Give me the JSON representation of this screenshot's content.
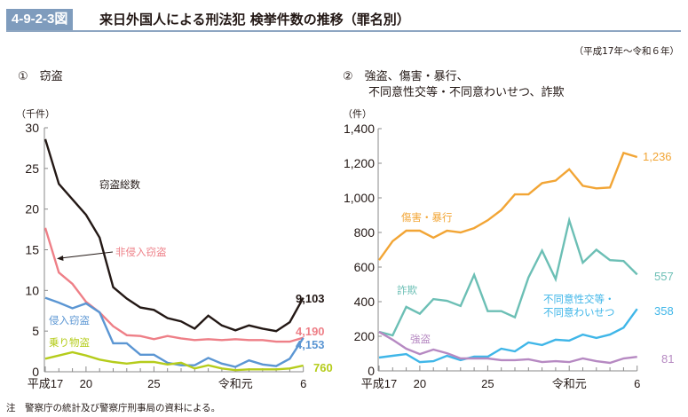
{
  "figure": {
    "number": "4-9-2-3図",
    "title": "来日外国人による刑法犯 検挙件数の推移（罪名別）",
    "period": "（平成17年～令和６年）",
    "note": "注　警察庁の統計及び警察庁刑事局の資料による。"
  },
  "colors": {
    "header_badge": "#7f9cbd",
    "theft_total": "#231815",
    "non_burglary": "#ee7f87",
    "burglary": "#5b96d3",
    "vehicle": "#b5cc1b",
    "assault": "#f2a535",
    "fraud": "#6cbfb5",
    "sexual": "#3fb6e8",
    "robbery": "#b689c2"
  },
  "chart_data": [
    {
      "type": "line",
      "panel_label": "①　窃盗",
      "ylabel": "（千件）",
      "ylim": [
        0,
        30
      ],
      "yticks": [
        "0",
        "5",
        "10",
        "15",
        "20",
        "25",
        "30"
      ],
      "ytick_values": [
        0,
        5,
        10,
        15,
        20,
        25,
        30
      ],
      "x": [
        "平成17",
        "18",
        "19",
        "20",
        "21",
        "22",
        "23",
        "24",
        "25",
        "26",
        "27",
        "28",
        "29",
        "30",
        "令和元",
        "2",
        "3",
        "4",
        "5",
        "6"
      ],
      "xtick_labels": [
        {
          "index": 0,
          "label": "平成17"
        },
        {
          "index": 3,
          "label": "20"
        },
        {
          "index": 8,
          "label": "25"
        },
        {
          "index": 14,
          "label": "令和元"
        },
        {
          "index": 19,
          "label": "6"
        }
      ],
      "grid": false,
      "series": [
        {
          "name": "窃盗総数",
          "key": "theft_total",
          "end_label": "9,103",
          "values": [
            28.6,
            23.1,
            21.2,
            19.3,
            16.5,
            10.4,
            9.0,
            7.9,
            7.6,
            6.6,
            6.2,
            5.3,
            6.9,
            5.7,
            5.1,
            5.7,
            5.3,
            5.0,
            6.1,
            9.103
          ]
        },
        {
          "name": "非侵入窃盗",
          "key": "non_burglary",
          "end_label": "4,190",
          "values": [
            17.7,
            12.2,
            10.8,
            8.6,
            7.3,
            5.6,
            4.5,
            4.4,
            4.0,
            4.4,
            4.1,
            3.9,
            4.0,
            3.9,
            4.0,
            3.9,
            3.9,
            3.7,
            3.7,
            4.19
          ]
        },
        {
          "name": "侵入窃盗",
          "key": "burglary",
          "end_label": "4,153",
          "values": [
            9.1,
            8.5,
            7.8,
            8.4,
            7.3,
            3.5,
            3.5,
            2.1,
            2.1,
            1.1,
            0.8,
            0.8,
            1.7,
            1.0,
            0.6,
            1.4,
            0.9,
            0.7,
            1.6,
            4.153
          ]
        },
        {
          "name": "乗り物盗",
          "key": "vehicle",
          "end_label": "760",
          "values": [
            1.6,
            2.0,
            2.4,
            2.0,
            1.5,
            1.2,
            1.0,
            1.2,
            1.2,
            0.9,
            1.1,
            0.4,
            0.8,
            0.4,
            0.2,
            0.3,
            0.3,
            0.3,
            0.4,
            0.76
          ]
        }
      ]
    },
    {
      "type": "line",
      "panel_label_line1": "②　強盗、傷害・暴行、",
      "panel_label_line2": "不同意性交等・不同意わいせつ、詐欺",
      "ylabel": "（件）",
      "ylim": [
        0,
        1400
      ],
      "yticks": [
        "0",
        "200",
        "400",
        "600",
        "800",
        "1,000",
        "1,200",
        "1,400"
      ],
      "ytick_values": [
        0,
        200,
        400,
        600,
        800,
        1000,
        1200,
        1400
      ],
      "x": [
        "平成17",
        "18",
        "19",
        "20",
        "21",
        "22",
        "23",
        "24",
        "25",
        "26",
        "27",
        "28",
        "29",
        "30",
        "令和元",
        "2",
        "3",
        "4",
        "5",
        "6"
      ],
      "xtick_labels": [
        {
          "index": 0,
          "label": "平成17"
        },
        {
          "index": 3,
          "label": "20"
        },
        {
          "index": 8,
          "label": "25"
        },
        {
          "index": 14,
          "label": "令和元"
        },
        {
          "index": 19,
          "label": "6"
        }
      ],
      "grid": false,
      "series": [
        {
          "name": "傷害・暴行",
          "key": "assault",
          "end_label": "1,236",
          "values": [
            640,
            750,
            810,
            810,
            770,
            810,
            800,
            825,
            870,
            930,
            1020,
            1020,
            1085,
            1100,
            1165,
            1070,
            1055,
            1060,
            1260,
            1236
          ]
        },
        {
          "name": "詐欺",
          "key": "fraud",
          "end_label": "557",
          "values": [
            225,
            205,
            370,
            330,
            415,
            405,
            375,
            555,
            345,
            345,
            310,
            540,
            695,
            530,
            870,
            625,
            700,
            640,
            635,
            557
          ]
        },
        {
          "name": "不同意性交等・不同意わいせつ",
          "key": "sexual",
          "end_label": "358",
          "label_line1": "不同意性交等・",
          "label_line2": "不同意わいせつ",
          "values": [
            77,
            87,
            97,
            51,
            56,
            87,
            62,
            82,
            82,
            128,
            113,
            164,
            149,
            180,
            175,
            210,
            190,
            210,
            250,
            358
          ]
        },
        {
          "name": "強盗",
          "key": "robbery",
          "end_label": "81",
          "values": [
            225,
            180,
            128,
            97,
            123,
            102,
            72,
            72,
            72,
            62,
            62,
            67,
            51,
            56,
            51,
            72,
            56,
            46,
            72,
            81
          ]
        }
      ]
    }
  ]
}
